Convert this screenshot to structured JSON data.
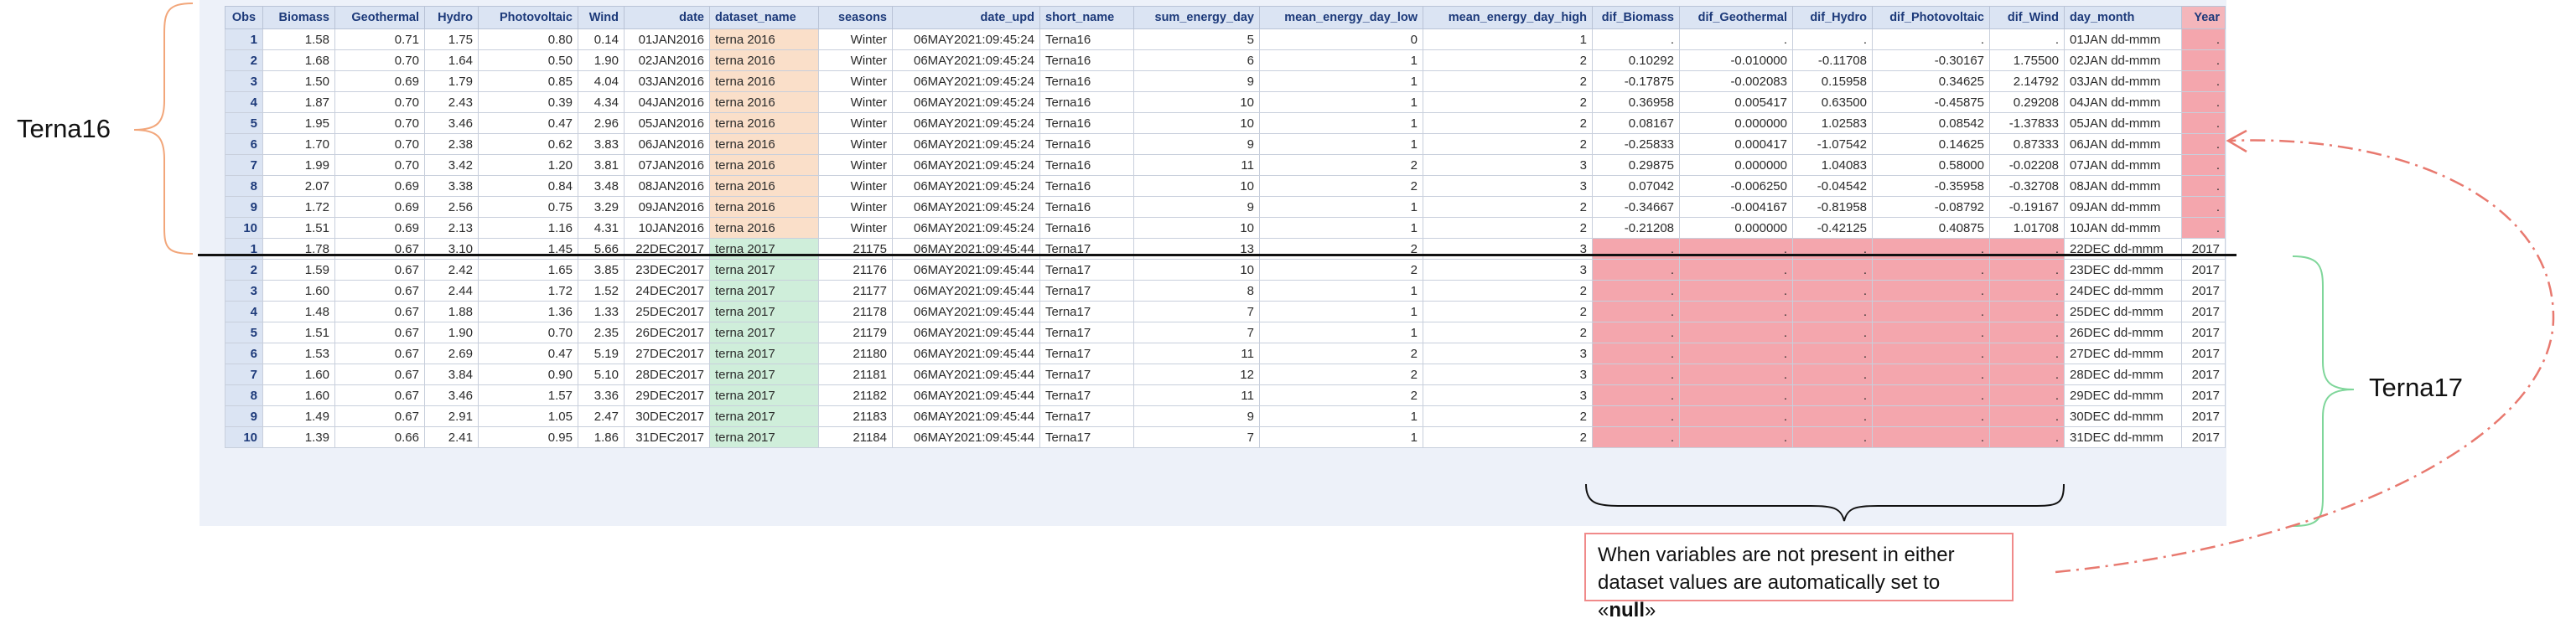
{
  "labels": {
    "left_group": "Terna16",
    "right_group": "Terna17",
    "note_prefix": "When variables are not present in either dataset values are automatically set to «",
    "note_bold": "null",
    "note_suffix": "»"
  },
  "colors": {
    "terna16_brace": "#f2a67a",
    "terna17_brace": "#7fd69a",
    "null_fill": "#f4a6ad",
    "ds16_fill": "#fadfc9",
    "ds17_fill": "#cfeeda",
    "arrow": "#e8796f"
  },
  "table": {
    "columns": [
      "Obs",
      "Biomass",
      "Geothermal",
      "Hydro",
      "Photovoltaic",
      "Wind",
      "date",
      "dataset_name",
      "seasons",
      "date_upd",
      "short_name",
      "sum_energy_day",
      "mean_energy_day_low",
      "mean_energy_day_high",
      "dif_Biomass",
      "dif_Geothermal",
      "dif_Hydro",
      "dif_Photovoltaic",
      "dif_Wind",
      "day_month",
      "Year"
    ],
    "rows16": [
      [
        "1",
        "1.58",
        "0.71",
        "1.75",
        "0.80",
        "0.14",
        "01JAN2016",
        "terna 2016",
        "Winter",
        "06MAY2021:09:45:24",
        "Terna16",
        "5",
        "0",
        "1",
        ".",
        ".",
        ".",
        ".",
        ".",
        "01JAN dd-mmm",
        "."
      ],
      [
        "2",
        "1.68",
        "0.70",
        "1.64",
        "0.50",
        "1.90",
        "02JAN2016",
        "terna 2016",
        "Winter",
        "06MAY2021:09:45:24",
        "Terna16",
        "6",
        "1",
        "2",
        "0.10292",
        "-0.010000",
        "-0.11708",
        "-0.30167",
        "1.75500",
        "02JAN dd-mmm",
        "."
      ],
      [
        "3",
        "1.50",
        "0.69",
        "1.79",
        "0.85",
        "4.04",
        "03JAN2016",
        "terna 2016",
        "Winter",
        "06MAY2021:09:45:24",
        "Terna16",
        "9",
        "1",
        "2",
        "-0.17875",
        "-0.002083",
        "0.15958",
        "0.34625",
        "2.14792",
        "03JAN dd-mmm",
        "."
      ],
      [
        "4",
        "1.87",
        "0.70",
        "2.43",
        "0.39",
        "4.34",
        "04JAN2016",
        "terna 2016",
        "Winter",
        "06MAY2021:09:45:24",
        "Terna16",
        "10",
        "1",
        "2",
        "0.36958",
        "0.005417",
        "0.63500",
        "-0.45875",
        "0.29208",
        "04JAN dd-mmm",
        "."
      ],
      [
        "5",
        "1.95",
        "0.70",
        "3.46",
        "0.47",
        "2.96",
        "05JAN2016",
        "terna 2016",
        "Winter",
        "06MAY2021:09:45:24",
        "Terna16",
        "10",
        "1",
        "2",
        "0.08167",
        "0.000000",
        "1.02583",
        "0.08542",
        "-1.37833",
        "05JAN dd-mmm",
        "."
      ],
      [
        "6",
        "1.70",
        "0.70",
        "2.38",
        "0.62",
        "3.83",
        "06JAN2016",
        "terna 2016",
        "Winter",
        "06MAY2021:09:45:24",
        "Terna16",
        "9",
        "1",
        "2",
        "-0.25833",
        "0.000417",
        "-1.07542",
        "0.14625",
        "0.87333",
        "06JAN dd-mmm",
        "."
      ],
      [
        "7",
        "1.99",
        "0.70",
        "3.42",
        "1.20",
        "3.81",
        "07JAN2016",
        "terna 2016",
        "Winter",
        "06MAY2021:09:45:24",
        "Terna16",
        "11",
        "2",
        "3",
        "0.29875",
        "0.000000",
        "1.04083",
        "0.58000",
        "-0.02208",
        "07JAN dd-mmm",
        "."
      ],
      [
        "8",
        "2.07",
        "0.69",
        "3.38",
        "0.84",
        "3.48",
        "08JAN2016",
        "terna 2016",
        "Winter",
        "06MAY2021:09:45:24",
        "Terna16",
        "10",
        "2",
        "3",
        "0.07042",
        "-0.006250",
        "-0.04542",
        "-0.35958",
        "-0.32708",
        "08JAN dd-mmm",
        "."
      ],
      [
        "9",
        "1.72",
        "0.69",
        "2.56",
        "0.75",
        "3.29",
        "09JAN2016",
        "terna 2016",
        "Winter",
        "06MAY2021:09:45:24",
        "Terna16",
        "9",
        "1",
        "2",
        "-0.34667",
        "-0.004167",
        "-0.81958",
        "-0.08792",
        "-0.19167",
        "09JAN dd-mmm",
        "."
      ],
      [
        "10",
        "1.51",
        "0.69",
        "2.13",
        "1.16",
        "4.31",
        "10JAN2016",
        "terna 2016",
        "Winter",
        "06MAY2021:09:45:24",
        "Terna16",
        "10",
        "1",
        "2",
        "-0.21208",
        "0.000000",
        "-0.42125",
        "0.40875",
        "1.01708",
        "10JAN dd-mmm",
        "."
      ]
    ],
    "rows17": [
      [
        "1",
        "1.78",
        "0.67",
        "3.10",
        "1.45",
        "5.66",
        "22DEC2017",
        "terna 2017",
        "21175",
        "06MAY2021:09:45:44",
        "Terna17",
        "13",
        "2",
        "3",
        ".",
        ".",
        ".",
        ".",
        ".",
        "22DEC dd-mmm",
        "2017"
      ],
      [
        "2",
        "1.59",
        "0.67",
        "2.42",
        "1.65",
        "3.85",
        "23DEC2017",
        "terna 2017",
        "21176",
        "06MAY2021:09:45:44",
        "Terna17",
        "10",
        "2",
        "3",
        ".",
        ".",
        ".",
        ".",
        ".",
        "23DEC dd-mmm",
        "2017"
      ],
      [
        "3",
        "1.60",
        "0.67",
        "2.44",
        "1.72",
        "1.52",
        "24DEC2017",
        "terna 2017",
        "21177",
        "06MAY2021:09:45:44",
        "Terna17",
        "8",
        "1",
        "2",
        ".",
        ".",
        ".",
        ".",
        ".",
        "24DEC dd-mmm",
        "2017"
      ],
      [
        "4",
        "1.48",
        "0.67",
        "1.88",
        "1.36",
        "1.33",
        "25DEC2017",
        "terna 2017",
        "21178",
        "06MAY2021:09:45:44",
        "Terna17",
        "7",
        "1",
        "2",
        ".",
        ".",
        ".",
        ".",
        ".",
        "25DEC dd-mmm",
        "2017"
      ],
      [
        "5",
        "1.51",
        "0.67",
        "1.90",
        "0.70",
        "2.35",
        "26DEC2017",
        "terna 2017",
        "21179",
        "06MAY2021:09:45:44",
        "Terna17",
        "7",
        "1",
        "2",
        ".",
        ".",
        ".",
        ".",
        ".",
        "26DEC dd-mmm",
        "2017"
      ],
      [
        "6",
        "1.53",
        "0.67",
        "2.69",
        "0.47",
        "5.19",
        "27DEC2017",
        "terna 2017",
        "21180",
        "06MAY2021:09:45:44",
        "Terna17",
        "11",
        "2",
        "3",
        ".",
        ".",
        ".",
        ".",
        ".",
        "27DEC dd-mmm",
        "2017"
      ],
      [
        "7",
        "1.60",
        "0.67",
        "3.84",
        "0.90",
        "5.10",
        "28DEC2017",
        "terna 2017",
        "21181",
        "06MAY2021:09:45:44",
        "Terna17",
        "12",
        "2",
        "3",
        ".",
        ".",
        ".",
        ".",
        ".",
        "28DEC dd-mmm",
        "2017"
      ],
      [
        "8",
        "1.60",
        "0.67",
        "3.46",
        "1.57",
        "3.36",
        "29DEC2017",
        "terna 2017",
        "21182",
        "06MAY2021:09:45:44",
        "Terna17",
        "11",
        "2",
        "3",
        ".",
        ".",
        ".",
        ".",
        ".",
        "29DEC dd-mmm",
        "2017"
      ],
      [
        "9",
        "1.49",
        "0.67",
        "2.91",
        "1.05",
        "2.47",
        "30DEC2017",
        "terna 2017",
        "21183",
        "06MAY2021:09:45:44",
        "Terna17",
        "9",
        "1",
        "2",
        ".",
        ".",
        ".",
        ".",
        ".",
        "30DEC dd-mmm",
        "2017"
      ],
      [
        "10",
        "1.39",
        "0.66",
        "2.41",
        "0.95",
        "1.86",
        "31DEC2017",
        "terna 2017",
        "21184",
        "06MAY2021:09:45:44",
        "Terna17",
        "7",
        "1",
        "2",
        ".",
        ".",
        ".",
        ".",
        ".",
        "31DEC dd-mmm",
        "2017"
      ]
    ]
  }
}
